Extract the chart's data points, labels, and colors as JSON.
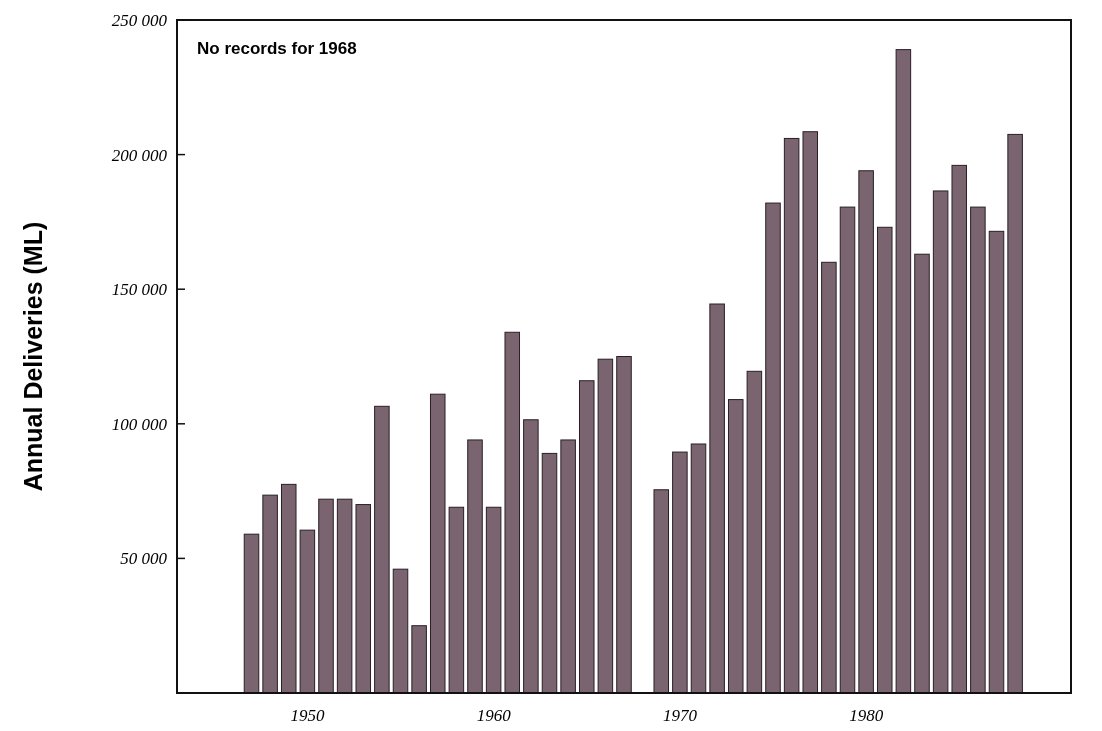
{
  "chart_data": {
    "type": "bar",
    "ylabel": "Annual Deliveries (ML)",
    "annotations": [
      "No records for 1968"
    ],
    "x": [
      1947,
      1948,
      1949,
      1950,
      1951,
      1952,
      1953,
      1954,
      1955,
      1956,
      1957,
      1958,
      1959,
      1960,
      1961,
      1962,
      1963,
      1964,
      1965,
      1966,
      1967,
      1969,
      1970,
      1971,
      1972,
      1973,
      1974,
      1975,
      1976,
      1977,
      1978,
      1979,
      1980,
      1981,
      1982,
      1983,
      1984,
      1985,
      1986,
      1987,
      1988
    ],
    "values": [
      59000,
      73500,
      77500,
      60500,
      72000,
      72000,
      70000,
      106500,
      46000,
      25000,
      111000,
      69000,
      94000,
      69000,
      134000,
      101500,
      89000,
      94000,
      116000,
      124000,
      125000,
      75500,
      89500,
      92500,
      144500,
      109000,
      119500,
      182000,
      206000,
      208500,
      160000,
      180500,
      194000,
      173000,
      239000,
      163000,
      186500,
      196000,
      180500,
      171500,
      207500
    ],
    "color": "#7a6470",
    "xlim": [
      1943,
      1991
    ],
    "xticks": [
      1950,
      1960,
      1970,
      1980
    ],
    "ylim": [
      0,
      250000
    ],
    "yticks": [
      {
        "value": 50000,
        "label": "50 000"
      },
      {
        "value": 100000,
        "label": "100 000"
      },
      {
        "value": 150000,
        "label": "150 000"
      },
      {
        "value": 200000,
        "label": "200 000"
      },
      {
        "value": 250000,
        "label": "250 000"
      }
    ],
    "grid": false
  }
}
